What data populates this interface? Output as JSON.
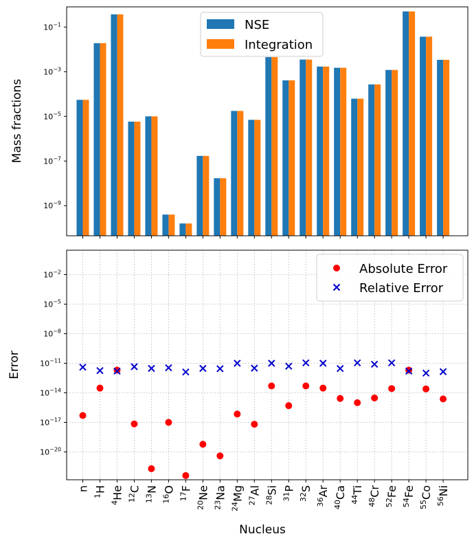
{
  "chart_data": [
    {
      "type": "bar",
      "scale": "log",
      "ylabel": "Mass fractions",
      "ylim": [
        4.5e-11,
        0.8
      ],
      "yticks": [
        {
          "value": 1e-09,
          "mant": "10",
          "exp": "−9"
        },
        {
          "value": 1e-07,
          "mant": "10",
          "exp": "−7"
        },
        {
          "value": 1e-05,
          "mant": "10",
          "exp": "−5"
        },
        {
          "value": 0.001,
          "mant": "10",
          "exp": "−3"
        },
        {
          "value": 0.1,
          "mant": "10",
          "exp": "−1"
        }
      ],
      "legend_position": "top-center",
      "series": [
        {
          "name": "NSE",
          "color": "#1f77b4",
          "values": [
            5.5e-05,
            0.019,
            0.37,
            5.8e-06,
            1e-05,
            4e-10,
            1.6e-10,
            1.7e-07,
            1.7e-08,
            1.75e-05,
            7e-06,
            0.0045,
            0.00041,
            0.0035,
            0.0017,
            0.0015,
            6.2e-05,
            0.00027,
            0.0012,
            0.5,
            0.037,
            0.0034
          ]
        },
        {
          "name": "Integration",
          "color": "#ff7f0e",
          "values": [
            5.5e-05,
            0.019,
            0.37,
            5.8e-06,
            1e-05,
            4e-10,
            1.6e-10,
            1.7e-07,
            1.7e-08,
            1.75e-05,
            7e-06,
            0.0045,
            0.00041,
            0.0035,
            0.0017,
            0.0015,
            6.2e-05,
            0.00027,
            0.0012,
            0.5,
            0.037,
            0.0034
          ]
        }
      ]
    },
    {
      "type": "scatter",
      "scale": "log",
      "ylabel": "Error",
      "xlabel": "Nucleus",
      "grid": true,
      "ylim": [
        1.5e-23,
        3.0
      ],
      "yticks": [
        {
          "value": 1e-20,
          "mant": "10",
          "exp": "−20"
        },
        {
          "value": 1e-17,
          "mant": "10",
          "exp": "−17"
        },
        {
          "value": 1e-14,
          "mant": "10",
          "exp": "−14"
        },
        {
          "value": 1e-11,
          "mant": "10",
          "exp": "−11"
        },
        {
          "value": 1e-08,
          "mant": "10",
          "exp": "−8"
        },
        {
          "value": 1e-05,
          "mant": "10",
          "exp": "−5"
        },
        {
          "value": 0.01,
          "mant": "10",
          "exp": "−2"
        }
      ],
      "legend_position": "top-right",
      "categories": [
        {
          "sup": "",
          "sym": "n"
        },
        {
          "sup": "1",
          "sym": "H"
        },
        {
          "sup": "4",
          "sym": "He"
        },
        {
          "sup": "12",
          "sym": "C"
        },
        {
          "sup": "13",
          "sym": "N"
        },
        {
          "sup": "16",
          "sym": "O"
        },
        {
          "sup": "17",
          "sym": "F"
        },
        {
          "sup": "20",
          "sym": "Ne"
        },
        {
          "sup": "23",
          "sym": "Na"
        },
        {
          "sup": "24",
          "sym": "Mg"
        },
        {
          "sup": "27",
          "sym": "Al"
        },
        {
          "sup": "28",
          "sym": "Si"
        },
        {
          "sup": "31",
          "sym": "P"
        },
        {
          "sup": "32",
          "sym": "S"
        },
        {
          "sup": "36",
          "sym": "Ar"
        },
        {
          "sup": "40",
          "sym": "Ca"
        },
        {
          "sup": "44",
          "sym": "Ti"
        },
        {
          "sup": "48",
          "sym": "Cr"
        },
        {
          "sup": "52",
          "sym": "Fe"
        },
        {
          "sup": "54",
          "sym": "Fe"
        },
        {
          "sup": "55",
          "sym": "Co"
        },
        {
          "sup": "56",
          "sym": "Ni"
        }
      ],
      "series": [
        {
          "name": "Absolute Error",
          "marker": "circle",
          "color": "#ff0000",
          "values": [
            5e-17,
            3e-14,
            2e-12,
            7e-18,
            2e-22,
            1e-17,
            4e-23,
            6e-20,
            4e-21,
            7e-17,
            6.5e-18,
            5e-14,
            5e-16,
            5e-14,
            3e-14,
            2.7e-15,
            1e-15,
            3e-15,
            2.7e-14,
            2e-12,
            2.5e-14,
            2.4e-15
          ]
        },
        {
          "name": "Relative Error",
          "marker": "x",
          "color": "#0000cc",
          "values": [
            4e-12,
            1.8e-12,
            1.6e-12,
            4.5e-12,
            3e-12,
            3.5e-12,
            1.3e-12,
            3e-12,
            2.8e-12,
            1e-11,
            3.2e-12,
            1e-11,
            5e-12,
            1.1e-11,
            1e-11,
            2.9e-12,
            1.1e-11,
            8e-12,
            1.1e-11,
            1.6e-12,
            1e-12,
            1.4e-12
          ]
        }
      ]
    }
  ]
}
